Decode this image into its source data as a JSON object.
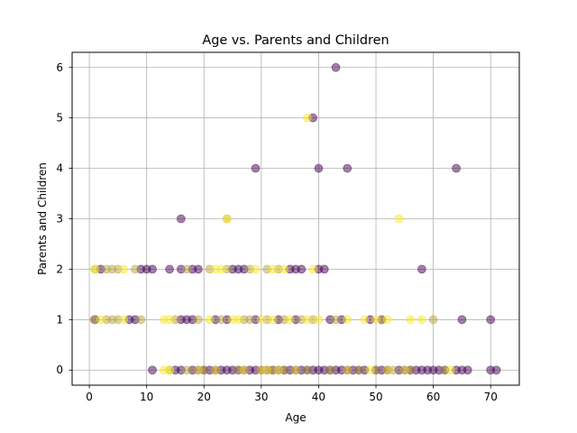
{
  "chart_data": {
    "type": "scatter",
    "title": "Age vs. Parents and Children",
    "xlabel": "Age",
    "ylabel": "Parents and Children",
    "xlim": [
      -3,
      75
    ],
    "ylim": [
      -0.3,
      6.3
    ],
    "xticks": [
      0,
      10,
      20,
      30,
      40,
      50,
      60,
      70
    ],
    "yticks": [
      0,
      1,
      2,
      3,
      4,
      5,
      6
    ],
    "grid": true,
    "legend": "none",
    "marker_opacity": 0.5,
    "colors": {
      "purple": "#440154",
      "olive": "#b5a642",
      "yellow": "#fde725",
      "grid": "#b0b0b0"
    },
    "series": [
      {
        "color_key": "purple",
        "points": [
          [
            11,
            0
          ],
          [
            15,
            0
          ],
          [
            16,
            0
          ],
          [
            18,
            0
          ],
          [
            19,
            0
          ],
          [
            20,
            0
          ],
          [
            21,
            0
          ],
          [
            22,
            0
          ],
          [
            23,
            0
          ],
          [
            24,
            0
          ],
          [
            25,
            0
          ],
          [
            26,
            0
          ],
          [
            27,
            0
          ],
          [
            28,
            0
          ],
          [
            29,
            0
          ],
          [
            30,
            0
          ],
          [
            31,
            0
          ],
          [
            32,
            0
          ],
          [
            33,
            0
          ],
          [
            34,
            0
          ],
          [
            35,
            0
          ],
          [
            36,
            0
          ],
          [
            37,
            0
          ],
          [
            38,
            0
          ],
          [
            39,
            0
          ],
          [
            40,
            0
          ],
          [
            41,
            0
          ],
          [
            42,
            0
          ],
          [
            43,
            0
          ],
          [
            44,
            0
          ],
          [
            45,
            0
          ],
          [
            46,
            0
          ],
          [
            47,
            0
          ],
          [
            48,
            0
          ],
          [
            50,
            0
          ],
          [
            51,
            0
          ],
          [
            52,
            0
          ],
          [
            54,
            0
          ],
          [
            55,
            0
          ],
          [
            56,
            0
          ],
          [
            57,
            0
          ],
          [
            58,
            0
          ],
          [
            59,
            0
          ],
          [
            60,
            0
          ],
          [
            61,
            0
          ],
          [
            62,
            0
          ],
          [
            64,
            0
          ],
          [
            65,
            0
          ],
          [
            66,
            0
          ],
          [
            70,
            0
          ],
          [
            71,
            0
          ],
          [
            1,
            1
          ],
          [
            7,
            1
          ],
          [
            8,
            1
          ],
          [
            16,
            1
          ],
          [
            17,
            1
          ],
          [
            18,
            1
          ],
          [
            22,
            1
          ],
          [
            24,
            1
          ],
          [
            29,
            1
          ],
          [
            33,
            1
          ],
          [
            36,
            1
          ],
          [
            42,
            1
          ],
          [
            44,
            1
          ],
          [
            49,
            1
          ],
          [
            51,
            1
          ],
          [
            65,
            1
          ],
          [
            70,
            1
          ],
          [
            2,
            2
          ],
          [
            9,
            2
          ],
          [
            10,
            2
          ],
          [
            11,
            2
          ],
          [
            14,
            2
          ],
          [
            16,
            2
          ],
          [
            18,
            2
          ],
          [
            19,
            2
          ],
          [
            25,
            2
          ],
          [
            26,
            2
          ],
          [
            27,
            2
          ],
          [
            35,
            2
          ],
          [
            36,
            2
          ],
          [
            37,
            2
          ],
          [
            40,
            2
          ],
          [
            41,
            2
          ],
          [
            58,
            2
          ],
          [
            16,
            3
          ],
          [
            29,
            4
          ],
          [
            40,
            4
          ],
          [
            45,
            4
          ],
          [
            64,
            4
          ],
          [
            39,
            5
          ],
          [
            43,
            6
          ]
        ]
      },
      {
        "color_key": "olive",
        "points": [
          [
            14,
            0
          ],
          [
            17,
            0
          ],
          [
            20,
            0
          ],
          [
            26,
            0
          ],
          [
            32,
            0
          ],
          [
            34,
            0
          ],
          [
            38,
            0
          ],
          [
            42,
            0
          ],
          [
            47,
            0
          ],
          [
            50,
            0
          ],
          [
            53,
            0
          ],
          [
            56,
            0
          ],
          [
            62,
            0
          ],
          [
            0.83,
            1
          ],
          [
            3,
            1
          ],
          [
            4,
            1
          ],
          [
            5,
            1
          ],
          [
            9,
            1
          ],
          [
            15,
            1
          ],
          [
            19,
            1
          ],
          [
            23,
            1
          ],
          [
            27,
            1
          ],
          [
            28,
            1
          ],
          [
            31,
            1
          ],
          [
            34,
            1
          ],
          [
            37,
            1
          ],
          [
            39,
            1
          ],
          [
            43,
            1
          ],
          [
            51,
            1
          ],
          [
            60,
            1
          ],
          [
            1,
            2
          ],
          [
            3,
            2
          ],
          [
            4,
            2
          ],
          [
            5,
            2
          ],
          [
            8,
            2
          ],
          [
            17,
            2
          ],
          [
            21,
            2
          ],
          [
            24,
            2
          ],
          [
            28,
            2
          ],
          [
            31,
            2
          ],
          [
            33,
            2
          ],
          [
            24,
            3
          ]
        ]
      },
      {
        "color_key": "yellow",
        "points": [
          [
            13,
            0
          ],
          [
            14,
            0
          ],
          [
            19,
            0
          ],
          [
            22,
            0
          ],
          [
            27,
            0
          ],
          [
            30,
            0
          ],
          [
            31,
            0
          ],
          [
            33,
            0
          ],
          [
            36,
            0
          ],
          [
            45,
            0
          ],
          [
            49,
            0
          ],
          [
            52,
            0
          ],
          [
            55,
            0
          ],
          [
            63,
            0
          ],
          [
            2,
            1
          ],
          [
            6,
            1
          ],
          [
            13,
            1
          ],
          [
            14,
            1
          ],
          [
            21,
            1
          ],
          [
            25,
            1
          ],
          [
            26,
            1
          ],
          [
            30,
            1
          ],
          [
            32,
            1
          ],
          [
            35,
            1
          ],
          [
            38,
            1
          ],
          [
            40,
            1
          ],
          [
            45,
            1
          ],
          [
            48,
            1
          ],
          [
            50,
            1
          ],
          [
            52,
            1
          ],
          [
            56,
            1
          ],
          [
            58,
            1
          ],
          [
            0.92,
            2
          ],
          [
            6,
            2
          ],
          [
            22,
            2
          ],
          [
            23,
            2
          ],
          [
            29,
            2
          ],
          [
            32,
            2
          ],
          [
            34,
            2
          ],
          [
            39,
            2
          ],
          [
            24,
            3
          ],
          [
            54,
            3
          ],
          [
            38,
            5
          ]
        ]
      }
    ]
  }
}
